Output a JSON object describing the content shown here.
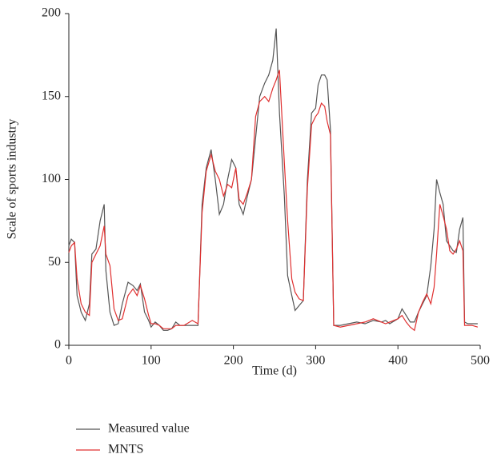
{
  "chart_data": {
    "type": "line",
    "xlabel": "Time (d)",
    "ylabel": "Scale of sports industry",
    "xlim": [
      0,
      500
    ],
    "xticks": [
      0,
      100,
      200,
      300,
      400,
      500
    ],
    "ylim": [
      0,
      200
    ],
    "yticks": [
      0,
      50,
      100,
      150,
      200
    ],
    "legend": "bottom",
    "x": [
      0,
      3,
      7,
      10,
      15,
      20,
      25,
      28,
      33,
      38,
      43,
      45,
      50,
      55,
      60,
      65,
      72,
      78,
      83,
      87,
      92,
      97,
      100,
      105,
      110,
      115,
      120,
      125,
      130,
      135,
      140,
      150,
      157,
      162,
      167,
      173,
      178,
      183,
      188,
      193,
      198,
      203,
      207,
      212,
      217,
      222,
      227,
      232,
      238,
      243,
      248,
      252,
      256,
      262,
      266,
      271,
      275,
      280,
      285,
      290,
      295,
      300,
      303,
      307,
      311,
      314,
      318,
      322,
      330,
      340,
      350,
      360,
      370,
      380,
      385,
      390,
      400,
      405,
      410,
      415,
      420,
      425,
      430,
      435,
      440,
      444,
      447,
      451,
      455,
      459,
      463,
      467,
      471,
      475,
      479,
      481,
      485,
      490,
      497
    ],
    "series": [
      {
        "name": "Measured value",
        "color": "#555555",
        "values": [
          60,
          64,
          62,
          30,
          20,
          15,
          25,
          55,
          58,
          75,
          85,
          45,
          20,
          12,
          13,
          25,
          38,
          36,
          33,
          37,
          20,
          15,
          11,
          14,
          12,
          9,
          9,
          10,
          14,
          12,
          12,
          12,
          12,
          85,
          107,
          118,
          100,
          79,
          85,
          100,
          112,
          107,
          85,
          79,
          90,
          100,
          125,
          150,
          158,
          163,
          172,
          191,
          140,
          90,
          42,
          30,
          21,
          24,
          27,
          100,
          140,
          143,
          157,
          163,
          163,
          160,
          130,
          12,
          12,
          13,
          14,
          13,
          15,
          14,
          15,
          13,
          16,
          22,
          18,
          14,
          14,
          20,
          25,
          30,
          48,
          70,
          100,
          92,
          85,
          63,
          60,
          57,
          56,
          70,
          77,
          14,
          13,
          13,
          13
        ]
      },
      {
        "name": "MNTS",
        "color": "#e03030",
        "values": [
          56,
          60,
          62,
          40,
          25,
          20,
          18,
          50,
          55,
          60,
          72,
          55,
          48,
          22,
          15,
          16,
          30,
          34,
          30,
          36,
          28,
          18,
          13,
          13,
          12,
          10,
          10,
          10,
          12,
          12,
          12,
          15,
          13,
          80,
          105,
          115,
          105,
          100,
          90,
          97,
          95,
          107,
          88,
          85,
          92,
          100,
          138,
          147,
          150,
          147,
          155,
          160,
          166,
          110,
          75,
          40,
          32,
          28,
          27,
          95,
          133,
          138,
          140,
          146,
          144,
          135,
          127,
          12,
          11,
          12,
          13,
          14,
          16,
          14,
          13,
          14,
          16,
          18,
          14,
          11,
          9,
          20,
          26,
          31,
          25,
          35,
          55,
          85,
          78,
          70,
          57,
          55,
          58,
          63,
          57,
          12,
          12,
          12,
          11
        ]
      }
    ]
  }
}
